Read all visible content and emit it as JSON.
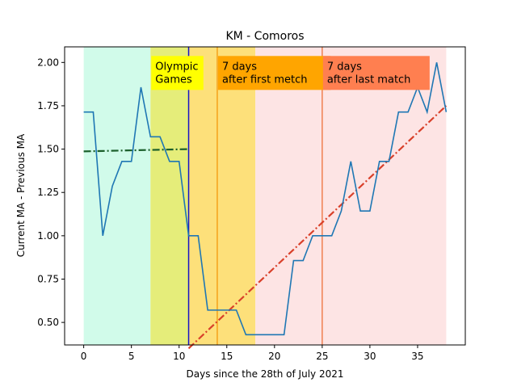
{
  "chart_data": {
    "type": "line",
    "title": "KM - Comoros",
    "xlabel": "Days since the 28th of July 2021",
    "ylabel": "Current MA - Previous MA",
    "xlim": [
      -2,
      40
    ],
    "ylim": [
      0.37,
      2.09
    ],
    "xticks": [
      0,
      5,
      10,
      15,
      20,
      25,
      30,
      35
    ],
    "yticks": [
      0.5,
      0.75,
      1.0,
      1.25,
      1.5,
      1.75,
      2.0
    ],
    "ytick_labels": [
      "0.50",
      "0.75",
      "1.00",
      "1.25",
      "1.50",
      "1.75",
      "2.00"
    ],
    "grid": false,
    "series": [
      {
        "color": "#1f77b4",
        "style": "step-line",
        "x": [
          0,
          1,
          2,
          3,
          4,
          5,
          6,
          7,
          8,
          9,
          10,
          11,
          12,
          13,
          14,
          15,
          16,
          17,
          18,
          19,
          20,
          21,
          22,
          23,
          24,
          25,
          26,
          27,
          28,
          29,
          30,
          31,
          32,
          33,
          34,
          35,
          36,
          37,
          38
        ],
        "y": [
          1.714,
          1.714,
          1.0,
          1.286,
          1.429,
          1.429,
          1.857,
          1.571,
          1.571,
          1.429,
          1.429,
          1.0,
          1.0,
          0.571,
          0.571,
          0.571,
          0.571,
          0.429,
          0.429,
          0.429,
          0.429,
          0.429,
          0.857,
          0.857,
          1.0,
          1.0,
          1.0,
          1.143,
          1.429,
          1.143,
          1.143,
          1.429,
          1.429,
          1.714,
          1.714,
          1.857,
          1.714,
          2.0,
          1.714
        ]
      }
    ],
    "trend_lines": [
      {
        "color": "#1a5e2a",
        "style": "dash-dot",
        "x": [
          0,
          11
        ],
        "y": [
          1.487,
          1.5
        ]
      },
      {
        "color": "#d9402a",
        "style": "dash-dot",
        "x": [
          11,
          38
        ],
        "y": [
          0.35,
          1.75
        ]
      }
    ],
    "bands": [
      {
        "x": [
          0,
          7
        ],
        "color": "#d1fbea"
      },
      {
        "x": [
          7,
          11
        ],
        "color": "#e5ed7a"
      },
      {
        "x": [
          11,
          18
        ],
        "color": "#fde07a"
      },
      {
        "x": [
          18,
          38
        ],
        "color": "#fde4e4"
      }
    ],
    "vlines": [
      {
        "x": 11,
        "color": "#1414c8"
      },
      {
        "x": 14,
        "color": "#f5a21a"
      },
      {
        "x": 25,
        "color": "#f08050"
      }
    ],
    "annotations": [
      {
        "lines": [
          "Olympic",
          "Games"
        ],
        "bg": "#ffff00",
        "x_at": 7,
        "y_at": 2.0
      },
      {
        "lines": [
          "7 days",
          "after first metch"
        ],
        "bg": "#ffa500",
        "x_at": 14,
        "y_at": 2.0
      },
      {
        "lines": [
          "7 days",
          "after last match"
        ],
        "bg": "#ff7f50",
        "x_at": 25,
        "y_at": 2.0
      }
    ]
  }
}
